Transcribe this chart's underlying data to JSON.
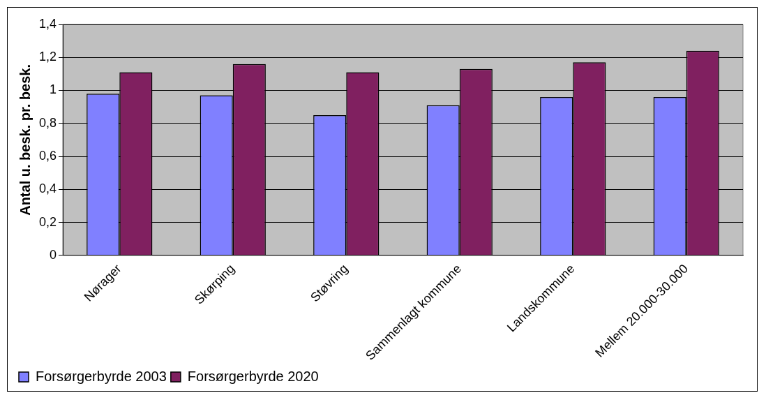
{
  "chart_data": {
    "type": "bar",
    "ylabel": "Antal u. besk. pr. besk.",
    "categories": [
      "Nørager",
      "Skørping",
      "Støvring",
      "Sammenlagt kommune",
      "Landskommune",
      "Mellem 20.000-30.000"
    ],
    "series": [
      {
        "name": "Forsørgerbyrde 2003",
        "color": "#8080ff",
        "values": [
          0.98,
          0.97,
          0.85,
          0.91,
          0.96,
          0.96
        ]
      },
      {
        "name": "Forsørgerbyrde 2020",
        "color": "#802060",
        "values": [
          1.11,
          1.16,
          1.11,
          1.13,
          1.17,
          1.24
        ]
      }
    ],
    "ylim": [
      0,
      1.4
    ],
    "yticks": [
      0,
      {
        "value": 0.2,
        "label": "0,2"
      },
      {
        "value": 0.4,
        "label": "0,4"
      },
      {
        "value": 0.6,
        "label": "0,6"
      },
      {
        "value": 0.8,
        "label": "0,8"
      },
      1,
      {
        "value": 1.2,
        "label": "1,2"
      },
      {
        "value": 1.4,
        "label": "1,4"
      }
    ],
    "grid": "y",
    "legend": "bottom left"
  }
}
